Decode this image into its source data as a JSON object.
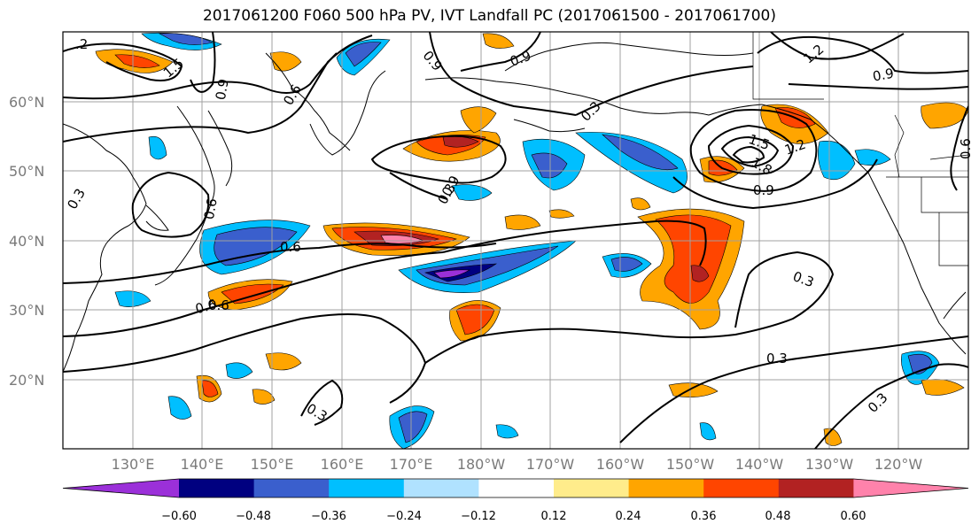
{
  "title": "2017061200 F060 500 hPa PV, IVT Landfall PC (2017061500 - 2017061700)",
  "latitude_labels": [
    "60°N",
    "50°N",
    "40°N",
    "30°N",
    "20°N"
  ],
  "longitude_labels": [
    "130°E",
    "140°E",
    "150°E",
    "160°E",
    "170°E",
    "180°W",
    "170°W",
    "160°W",
    "150°W",
    "140°W",
    "130°W",
    "120°W"
  ],
  "contour_labels": [
    ".2",
    "1.5",
    "0.9",
    "0.6",
    "0.9",
    "0.3",
    "0.6",
    "0.6",
    "0.6",
    "0.3",
    "0.3",
    "0.3",
    "0.3",
    "0.3",
    "0.3",
    "0.9",
    "1.5",
    "1.2",
    "1.8",
    "0.9",
    "1.2",
    "0.9",
    "0.6",
    "0.9",
    "0.6"
  ],
  "colorbar": {
    "colors": [
      "#9b30d9",
      "#000080",
      "#3a5fcd",
      "#00bfff",
      "#b0e2ff",
      "#ffffff",
      "#ffec8b",
      "#ffa500",
      "#ff4500",
      "#b22222",
      "#ff82ab"
    ],
    "tick_labels": [
      "−0.60",
      "−0.48",
      "−0.36",
      "−0.24",
      "−0.12",
      "0.12",
      "0.24",
      "0.36",
      "0.48",
      "0.60"
    ]
  },
  "chart_data": {
    "type": "heatmap",
    "title": "2017061200 F060 500 hPa PV, IVT Landfall PC (2017061500 - 2017061700)",
    "map_extent": {
      "lon_min": 120,
      "lon_max": 250,
      "lat_min": 10,
      "lat_max": 70
    },
    "colorbar_levels": [
      -0.6,
      -0.48,
      -0.36,
      -0.24,
      -0.12,
      0.12,
      0.24,
      0.36,
      0.48,
      0.6
    ],
    "contour_levels": [
      0.3,
      0.6,
      0.9,
      1.2,
      1.5,
      1.8
    ],
    "grid": true
  }
}
